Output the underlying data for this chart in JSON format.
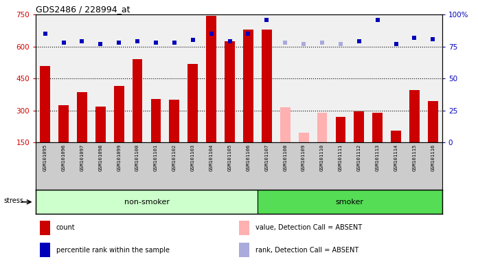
{
  "title": "GDS2486 / 228994_at",
  "samples": [
    "GSM101095",
    "GSM101096",
    "GSM101097",
    "GSM101098",
    "GSM101099",
    "GSM101100",
    "GSM101101",
    "GSM101102",
    "GSM101103",
    "GSM101104",
    "GSM101105",
    "GSM101106",
    "GSM101107",
    "GSM101108",
    "GSM101109",
    "GSM101110",
    "GSM101111",
    "GSM101112",
    "GSM101113",
    "GSM101114",
    "GSM101115",
    "GSM101116"
  ],
  "counts": [
    510,
    325,
    385,
    320,
    415,
    540,
    355,
    350,
    520,
    745,
    625,
    680,
    680,
    315,
    195,
    290,
    270,
    295,
    290,
    205,
    395,
    345
  ],
  "absent_flags": [
    false,
    false,
    false,
    false,
    false,
    false,
    false,
    false,
    false,
    false,
    false,
    false,
    false,
    true,
    true,
    true,
    false,
    false,
    false,
    false,
    false,
    false
  ],
  "percentile_ranks": [
    85,
    78,
    79,
    77,
    78,
    79,
    78,
    78,
    80,
    85,
    79,
    85,
    96,
    78,
    77,
    78,
    77,
    79,
    96,
    77,
    82,
    81
  ],
  "absent_rank_flags": [
    false,
    false,
    false,
    false,
    false,
    false,
    false,
    false,
    false,
    false,
    false,
    false,
    false,
    true,
    true,
    true,
    true,
    false,
    false,
    false,
    false,
    false
  ],
  "non_smoker_count": 12,
  "smoker_count": 10,
  "ylim_left": [
    150,
    750
  ],
  "ylim_right": [
    0,
    100
  ],
  "yticks_left": [
    150,
    300,
    450,
    600,
    750
  ],
  "yticks_right": [
    0,
    25,
    50,
    75,
    100
  ],
  "bar_color_present": "#cc0000",
  "bar_color_absent": "#ffb0b0",
  "dot_color_present": "#0000bb",
  "dot_color_absent": "#aaaadd",
  "non_smoker_bg": "#ccffcc",
  "smoker_bg": "#55dd55",
  "plot_bg": "#f0f0f0",
  "grid_color": "#000000",
  "legend_items": [
    {
      "label": "count",
      "color": "#cc0000"
    },
    {
      "label": "percentile rank within the sample",
      "color": "#0000bb"
    },
    {
      "label": "value, Detection Call = ABSENT",
      "color": "#ffb0b0"
    },
    {
      "label": "rank, Detection Call = ABSENT",
      "color": "#aaaadd"
    }
  ]
}
